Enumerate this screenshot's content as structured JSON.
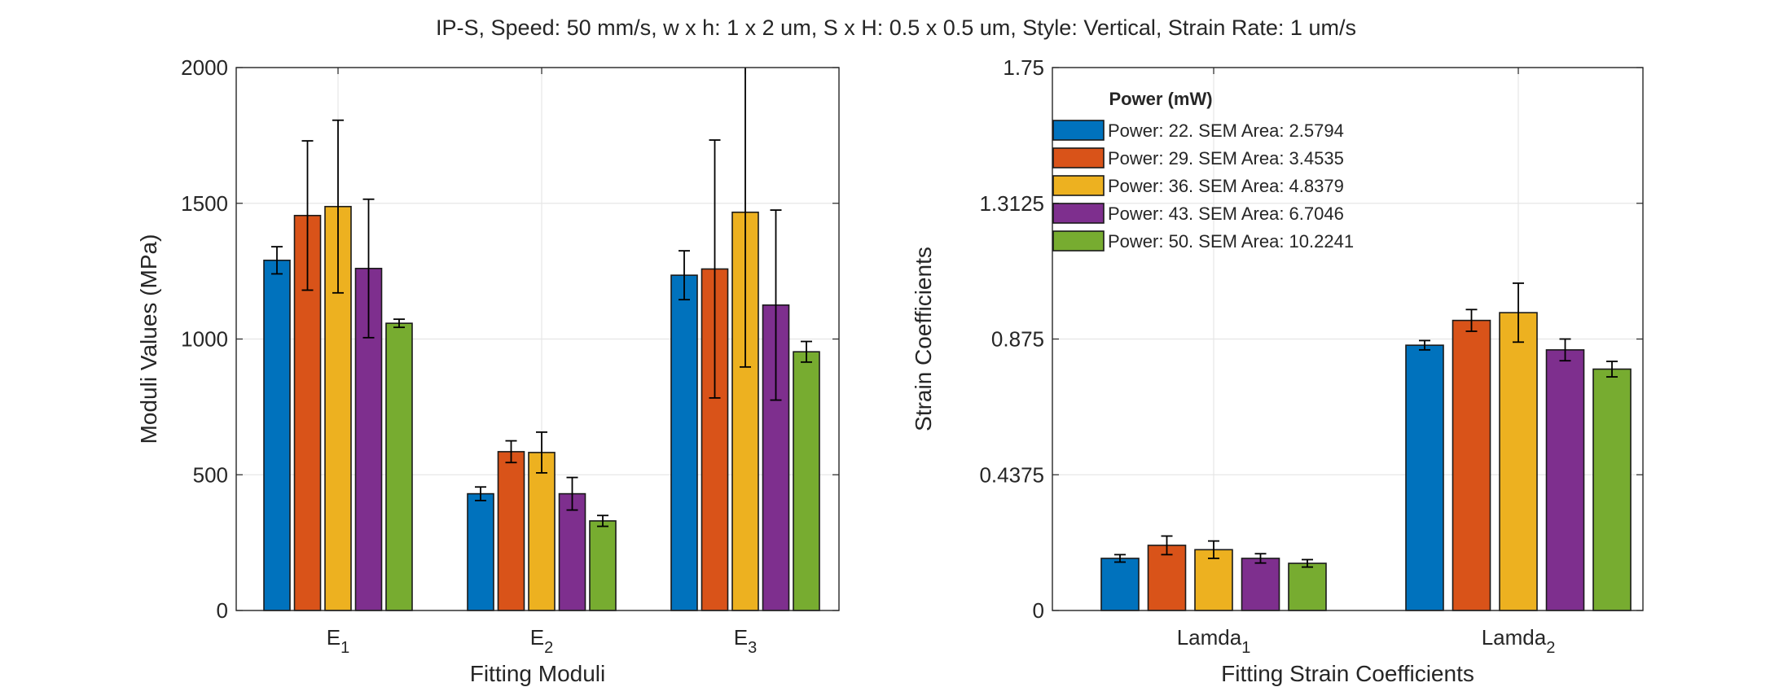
{
  "title": "IP-S, Speed: 50 mm/s, w x h: 1 x 2 um, S x H: 0.5 x 0.5 um, Style: Vertical, Strain Rate: 1 um/s",
  "legend": {
    "title": "Power (mW)",
    "entries": [
      {
        "label": "Power: 22. SEM Area: 2.5794",
        "color": "#0072BD"
      },
      {
        "label": "Power: 29. SEM Area: 3.4535",
        "color": "#D95319"
      },
      {
        "label": "Power: 36. SEM Area: 4.8379",
        "color": "#EDB120"
      },
      {
        "label": "Power: 43. SEM Area: 6.7046",
        "color": "#7E2F8E"
      },
      {
        "label": "Power: 50. SEM Area: 10.2241",
        "color": "#77AC30"
      }
    ]
  },
  "chart_data": [
    {
      "type": "bar",
      "xlabel": "Fitting Moduli",
      "ylabel": "Moduli Values (MPa)",
      "ylim": [
        0,
        2000
      ],
      "yticks": [
        "0",
        "500",
        "1000",
        "1500",
        "2000"
      ],
      "yticks_values": [
        0,
        500,
        1000,
        1500,
        2000
      ],
      "grid": true,
      "categories": [
        {
          "base": "E",
          "sub": "1"
        },
        {
          "base": "E",
          "sub": "2"
        },
        {
          "base": "E",
          "sub": "3"
        }
      ],
      "series": [
        {
          "values": [
            1290,
            430,
            1235
          ],
          "errors": [
            50,
            25,
            90
          ]
        },
        {
          "values": [
            1455,
            585,
            1258
          ],
          "errors": [
            275,
            40,
            475
          ]
        },
        {
          "values": [
            1488,
            582,
            1467
          ],
          "errors": [
            318,
            75,
            570
          ]
        },
        {
          "values": [
            1260,
            430,
            1125
          ],
          "errors": [
            255,
            60,
            350
          ]
        },
        {
          "values": [
            1058,
            330,
            953
          ],
          "errors": [
            15,
            20,
            38
          ]
        }
      ]
    },
    {
      "type": "bar",
      "xlabel": "Fitting Strain Coefficients",
      "ylabel": "Strain Coefficients",
      "ylim": [
        0,
        1.75
      ],
      "yticks": [
        "0",
        "0.4375",
        "0.875",
        "1.3125",
        "1.75"
      ],
      "yticks_values": [
        0,
        0.4375,
        0.875,
        1.3125,
        1.75
      ],
      "grid": true,
      "legend_position": "top-left",
      "categories": [
        {
          "base": "Lamda",
          "sub": "1"
        },
        {
          "base": "Lamda",
          "sub": "2"
        }
      ],
      "series": [
        {
          "values": [
            0.168,
            0.855
          ],
          "errors": [
            0.012,
            0.015
          ]
        },
        {
          "values": [
            0.21,
            0.935
          ],
          "errors": [
            0.03,
            0.035
          ]
        },
        {
          "values": [
            0.196,
            0.96
          ],
          "errors": [
            0.028,
            0.095
          ]
        },
        {
          "values": [
            0.168,
            0.84
          ],
          "errors": [
            0.015,
            0.035
          ]
        },
        {
          "values": [
            0.152,
            0.778
          ],
          "errors": [
            0.012,
            0.025
          ]
        }
      ]
    }
  ]
}
